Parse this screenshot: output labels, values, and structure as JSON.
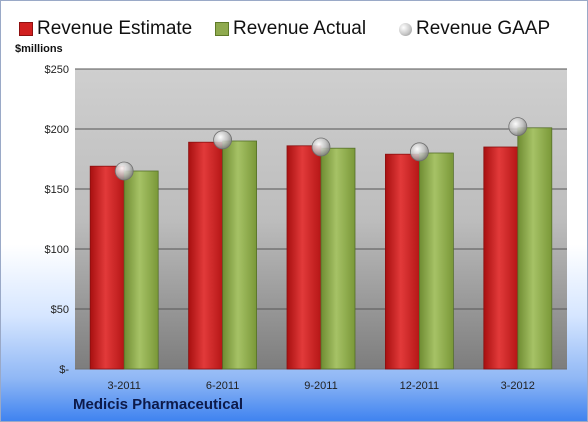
{
  "chart_data": {
    "type": "bar",
    "categories": [
      "3-2011",
      "6-2011",
      "9-2011",
      "12-2011",
      "3-2012"
    ],
    "series": [
      {
        "name": "Revenue Estimate",
        "type": "bar",
        "color": "#d11f1f",
        "values": [
          169,
          189,
          186,
          179,
          185
        ]
      },
      {
        "name": "Revenue Actual",
        "type": "bar",
        "color": "#8faa4e",
        "values": [
          165,
          190,
          184,
          180,
          201
        ]
      },
      {
        "name": "Revenue GAAP",
        "type": "marker",
        "color": "#b9b9b9",
        "values": [
          165,
          191,
          185,
          181,
          202
        ]
      }
    ],
    "ylabel": "$millions",
    "ylim": [
      0,
      250
    ],
    "yticks": [
      0,
      50,
      100,
      150,
      200,
      250
    ],
    "ytick_labels": [
      "$-",
      "$50",
      "$100",
      "$150",
      "$200",
      "$250"
    ],
    "grid": true,
    "legend": "top"
  },
  "footer": {
    "company": "Medicis Pharmaceutical"
  }
}
